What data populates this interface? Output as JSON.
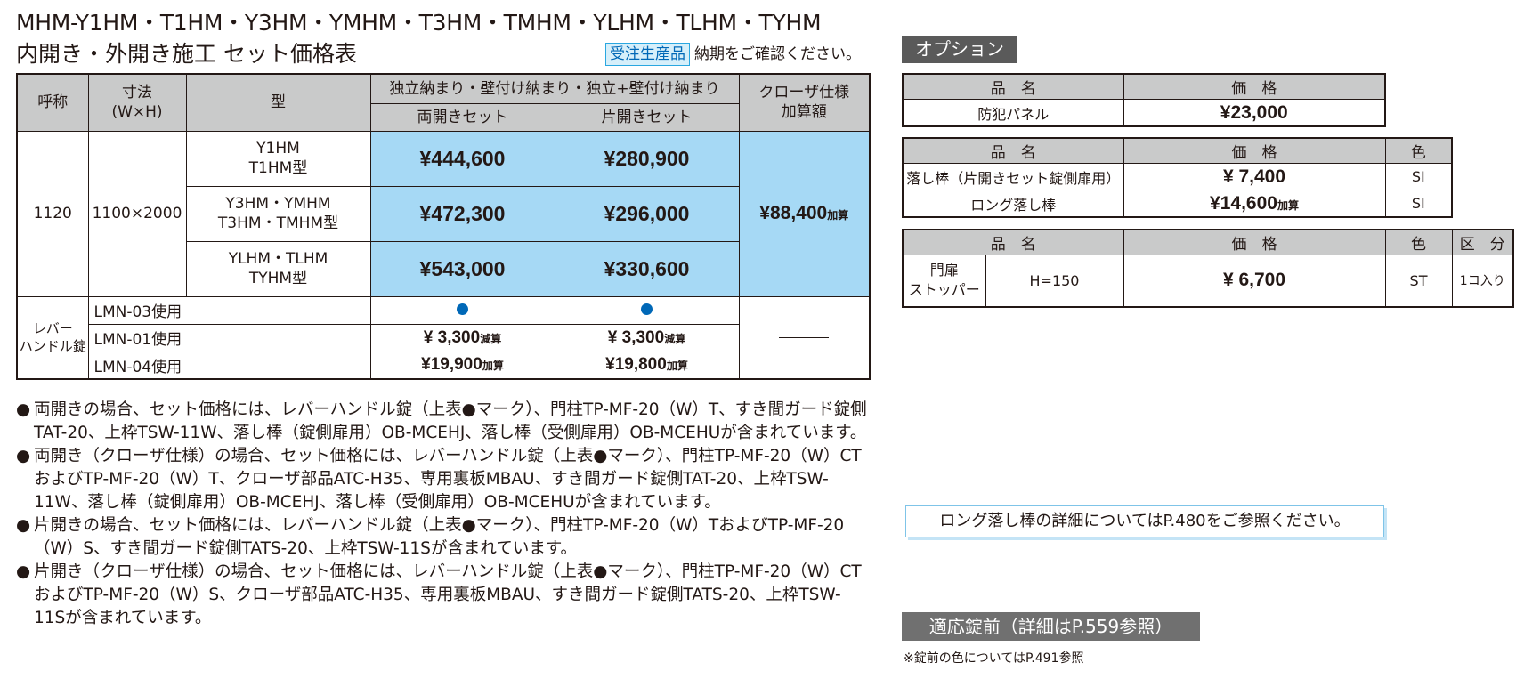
{
  "page": {
    "title_line1": "MHM-Y1HM・T1HM・Y3HM・YMHM・T3HM・TMHM・YLHM・TLHM・TYHM",
    "title_line2": "内開き・外開き施工 セット価格表",
    "badge": "受注生産品",
    "badge_note": "納期をご確認ください。"
  },
  "main_table": {
    "headers": {
      "name": "呼称",
      "size": "寸法",
      "size_sub": "(W×H)",
      "type": "型",
      "group": "独立納まり・壁付け納まり・独立+壁付け納まり",
      "double": "両開きセット",
      "single": "片開きセット",
      "closer": "クローザ仕様",
      "closer_sub": "加算額"
    },
    "name": "1120",
    "size": "1100×2000",
    "rows": [
      {
        "type1": "Y1HM",
        "type2": "T1HM型",
        "double": "¥444,600",
        "single": "¥280,900"
      },
      {
        "type1": "Y3HM・YMHM",
        "type2": "T3HM・TMHM型",
        "double": "¥472,300",
        "single": "¥296,000"
      },
      {
        "type1": "YLHM・TLHM",
        "type2": "TYHM型",
        "double": "¥543,000",
        "single": "¥330,600"
      }
    ],
    "closer_price": "¥88,400",
    "closer_suffix": "加算",
    "lever": {
      "label1": "レバー",
      "label2": "ハンドル錠",
      "rows": [
        {
          "name": "LMN-03使用",
          "double": "",
          "double_sfx": "",
          "single": "",
          "single_sfx": "",
          "dot": true
        },
        {
          "name": "LMN-01使用",
          "double": "¥ 3,300",
          "double_sfx": "減算",
          "single": "¥ 3,300",
          "single_sfx": "減算",
          "dot": false
        },
        {
          "name": "LMN-04使用",
          "double": "¥19,900",
          "double_sfx": "加算",
          "single": "¥19,800",
          "single_sfx": "加算",
          "dot": false
        }
      ]
    }
  },
  "notes": [
    "両開きの場合、セット価格には、レバーハンドル錠（上表●マーク）、門柱TP-MF-20（W）T、すき間ガード錠側TAT-20、上枠TSW-11W、落し棒（錠側扉用）OB-MCEHJ、落し棒（受側扉用）OB-MCEHUが含まれています。",
    "両開き（クローザ仕様）の場合、セット価格には、レバーハンドル錠（上表●マーク）、門柱TP-MF-20（W）CTおよびTP-MF-20（W）T、クローザ部品ATC-H35、専用裏板MBAU、すき間ガード錠側TAT-20、上枠TSW-11W、落し棒（錠側扉用）OB-MCEHJ、落し棒（受側扉用）OB-MCEHUが含まれています。",
    "片開きの場合、セット価格には、レバーハンドル錠（上表●マーク）、門柱TP-MF-20（W）TおよびTP-MF-20（W）S、すき間ガード錠側TATS-20、上枠TSW-11Sが含まれています。",
    "片開き（クローザ仕様）の場合、セット価格には、レバーハンドル錠（上表●マーク）、門柱TP-MF-20（W）CTおよびTP-MF-20（W）S、クローザ部品ATC-H35、専用裏板MBAU、すき間ガード錠側TATS-20、上枠TSW-11Sが含まれています。"
  ],
  "options": {
    "header": "オプション",
    "col_name": "品　名",
    "col_price": "価　格",
    "col_color": "色",
    "col_category": "区　分",
    "table1": [
      {
        "name": "防犯パネル",
        "price": "¥23,000"
      }
    ],
    "table2": [
      {
        "name": "落し棒（片開きセット錠側扉用）",
        "price": "¥ 7,400",
        "suffix": "",
        "color": "SI"
      },
      {
        "name": "ロング落し棒",
        "price": "¥14,600",
        "suffix": "加算",
        "color": "SI"
      }
    ],
    "table3": [
      {
        "name1": "門扉",
        "name2": "ストッパー",
        "spec": "H=150",
        "price": "¥ 6,700",
        "color": "ST",
        "category": "1コ入り"
      }
    ]
  },
  "reference": "ロング落し棒の詳細についてはP.480をご参照ください。",
  "lock": {
    "header": "適応錠前（詳細はP.559参照）",
    "note": "※錠前の色についてはP.491参照"
  }
}
